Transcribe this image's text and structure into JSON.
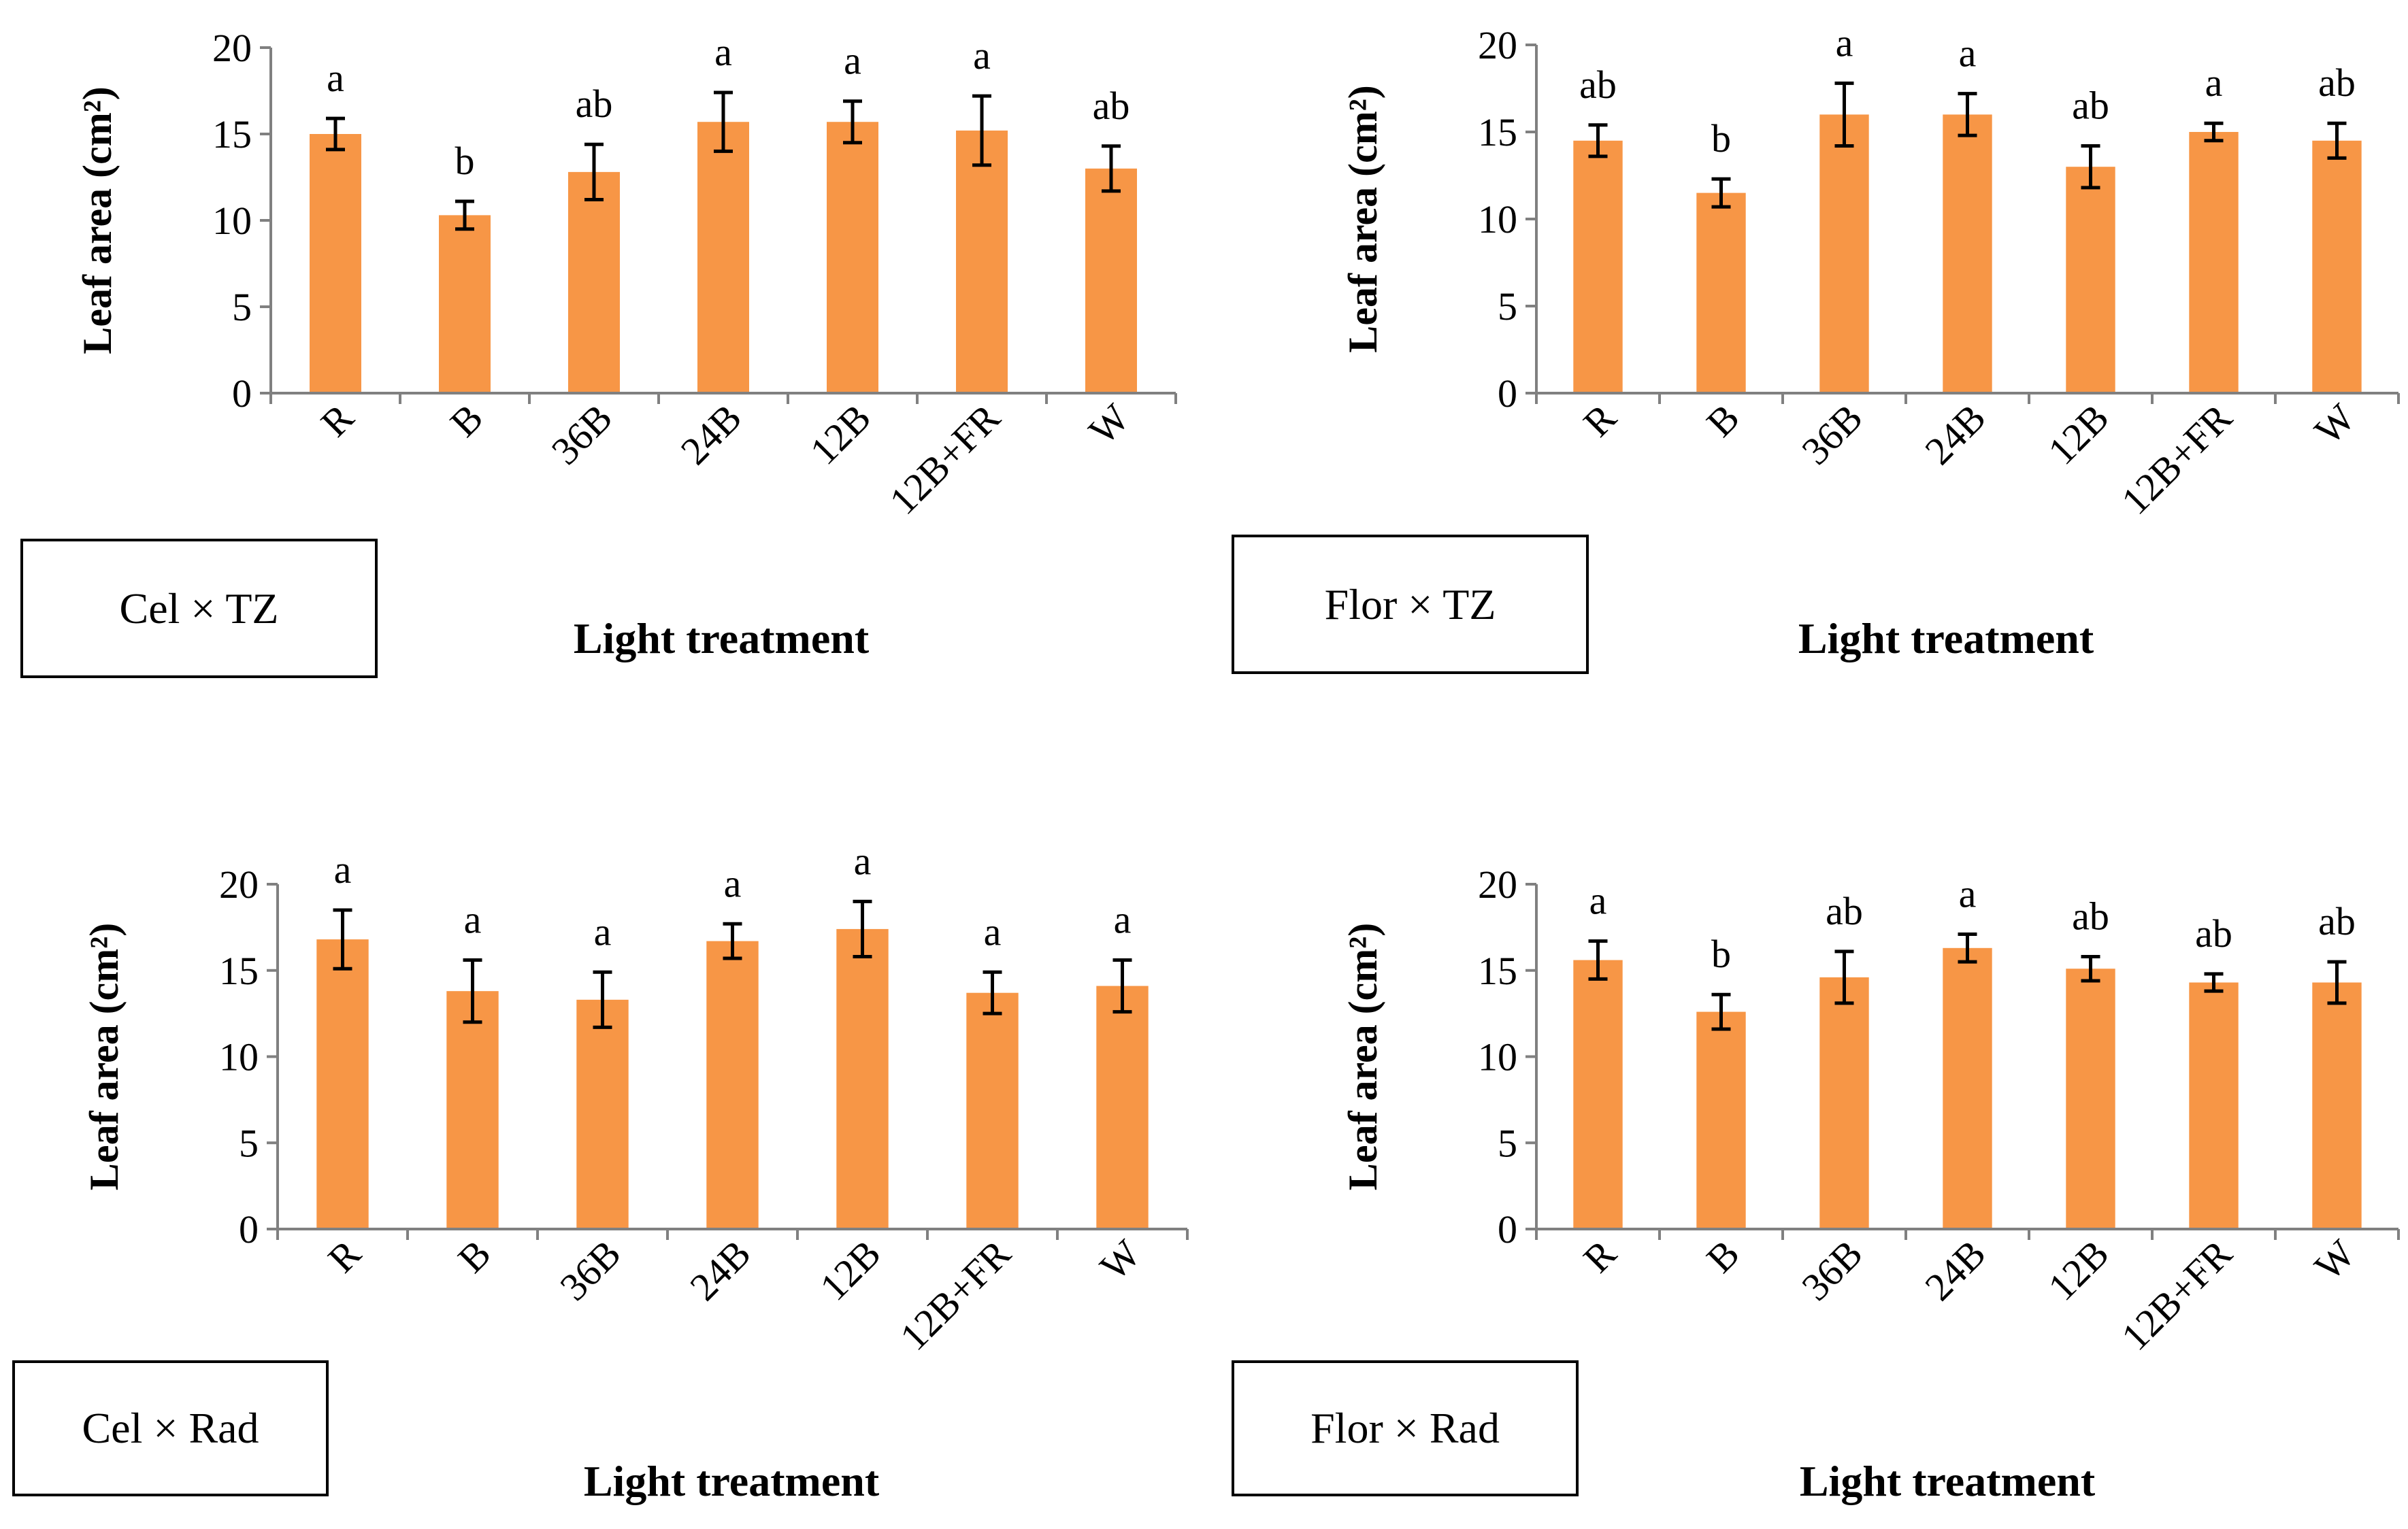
{
  "colors": {
    "bar": "#F79646",
    "axis": "#808080",
    "text": "#000000",
    "error": "#000000"
  },
  "chart_data": [
    {
      "type": "bar",
      "panel_label": "Cel × TZ",
      "xlabel": "Light treatment",
      "ylabel": "Leaf area (cm²)",
      "categories": [
        "R",
        "B",
        "36B",
        "24B",
        "12B",
        "12B+FR",
        "W"
      ],
      "values": [
        15.0,
        10.3,
        12.8,
        15.7,
        15.7,
        15.2,
        13.0
      ],
      "errors": [
        0.9,
        0.8,
        1.6,
        1.7,
        1.2,
        2.0,
        1.3
      ],
      "significance": [
        "a",
        "b",
        "ab",
        "a",
        "a",
        "a",
        "ab"
      ],
      "ylim": [
        0,
        20
      ],
      "yticks": [
        "0",
        "5",
        "10",
        "15",
        "20"
      ],
      "grid": false,
      "legend": "none"
    },
    {
      "type": "bar",
      "panel_label": "Flor × TZ",
      "xlabel": "Light treatment",
      "ylabel": "Leaf area (cm²)",
      "categories": [
        "R",
        "B",
        "36B",
        "24B",
        "12B",
        "12B+FR",
        "W"
      ],
      "values": [
        14.5,
        11.5,
        16.0,
        16.0,
        13.0,
        15.0,
        14.5
      ],
      "errors": [
        0.9,
        0.8,
        1.8,
        1.2,
        1.2,
        0.5,
        1.0
      ],
      "significance": [
        "ab",
        "b",
        "a",
        "a",
        "ab",
        "a",
        "ab"
      ],
      "ylim": [
        0,
        20
      ],
      "yticks": [
        "0",
        "5",
        "10",
        "15",
        "20"
      ],
      "grid": false,
      "legend": "none"
    },
    {
      "type": "bar",
      "panel_label": "Cel × Rad",
      "xlabel": "Light treatment",
      "ylabel": "Leaf area (cm²)",
      "categories": [
        "R",
        "B",
        "36B",
        "24B",
        "12B",
        "12B+FR",
        "W"
      ],
      "values": [
        16.8,
        13.8,
        13.3,
        16.7,
        17.4,
        13.7,
        14.1
      ],
      "errors": [
        1.7,
        1.8,
        1.6,
        1.0,
        1.6,
        1.2,
        1.5
      ],
      "significance": [
        "a",
        "a",
        "a",
        "a",
        "a",
        "a",
        "a"
      ],
      "ylim": [
        0,
        20
      ],
      "yticks": [
        "0",
        "5",
        "10",
        "15",
        "20"
      ],
      "grid": false,
      "legend": "none"
    },
    {
      "type": "bar",
      "panel_label": "Flor × Rad",
      "xlabel": "Light treatment",
      "ylabel": "Leaf area (cm²)",
      "categories": [
        "R",
        "B",
        "36B",
        "24B",
        "12B",
        "12B+FR",
        "W"
      ],
      "values": [
        15.6,
        12.6,
        14.6,
        16.3,
        15.1,
        14.3,
        14.3
      ],
      "errors": [
        1.1,
        1.0,
        1.5,
        0.8,
        0.7,
        0.5,
        1.2
      ],
      "significance": [
        "a",
        "b",
        "ab",
        "a",
        "ab",
        "ab",
        "ab"
      ],
      "ylim": [
        0,
        20
      ],
      "yticks": [
        "0",
        "5",
        "10",
        "15",
        "20"
      ],
      "grid": false,
      "legend": "none"
    }
  ]
}
